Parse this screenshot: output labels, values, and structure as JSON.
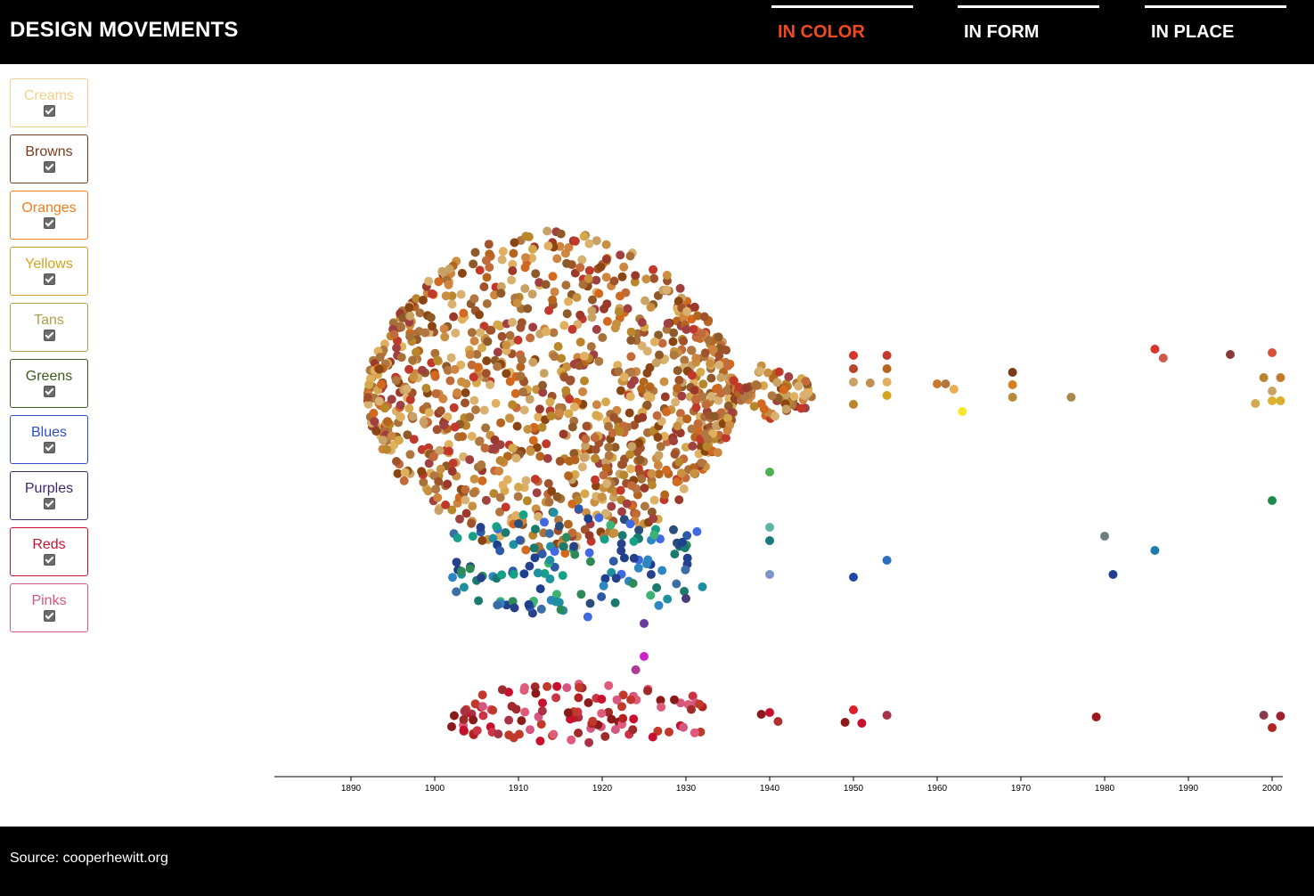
{
  "header": {
    "title": "DESIGN MOVEMENTS",
    "tabs": [
      {
        "label": "IN COLOR",
        "active": true
      },
      {
        "label": "IN FORM",
        "active": false
      },
      {
        "label": "IN PLACE",
        "active": false
      }
    ],
    "active_color": "#f04a24"
  },
  "filters": [
    {
      "label": "Creams",
      "color": "#f0d28c",
      "checked": true
    },
    {
      "label": "Browns",
      "color": "#7a3b1c",
      "checked": true
    },
    {
      "label": "Oranges",
      "color": "#f07e1e",
      "checked": true
    },
    {
      "label": "Yellows",
      "color": "#d4a21e",
      "checked": true
    },
    {
      "label": "Tans",
      "color": "#b59e4b",
      "checked": true
    },
    {
      "label": "Greens",
      "color": "#3d5a1e",
      "checked": true
    },
    {
      "label": "Blues",
      "color": "#2e4ec4",
      "checked": true
    },
    {
      "label": "Purples",
      "color": "#3a2a6e",
      "checked": true
    },
    {
      "label": "Reds",
      "color": "#c8102e",
      "checked": true
    },
    {
      "label": "Pinks",
      "color": "#d4577f",
      "checked": true
    }
  ],
  "footer": {
    "source": "Source: cooperhewitt.org"
  },
  "chart_data": {
    "type": "scatter",
    "title": "",
    "xlabel": "",
    "ylabel": "",
    "x_ticks": [
      1890,
      1900,
      1910,
      1920,
      1930,
      1940,
      1950,
      1960,
      1970,
      1980,
      1990,
      2000
    ],
    "xlim": [
      1881,
      2001
    ],
    "grid": false,
    "series": [
      {
        "group": "warm",
        "colors": [
          "#a0522d",
          "#b5651d",
          "#c8a165",
          "#8b4513",
          "#d2691e",
          "#c0392b",
          "#b8862b",
          "#a9713a",
          "#cd853f",
          "#d4a84b",
          "#9b3a2a",
          "#e0b060",
          "#b07840",
          "#c26a3a",
          "#8f5a2a",
          "#d8b070",
          "#a04040",
          "#c89040"
        ],
        "clusters": [
          {
            "year_min": 1892,
            "year_max": 1938,
            "count": 1150,
            "peak_year": 1915
          },
          {
            "year_min": 1938,
            "year_max": 1945,
            "count": 55
          }
        ],
        "points": [
          {
            "x": 1950,
            "color": "#d9362b"
          },
          {
            "x": 1950,
            "color": "#b8442e"
          },
          {
            "x": 1950,
            "color": "#c8a165"
          },
          {
            "x": 1950,
            "color": "#b8862b"
          },
          {
            "x": 1952,
            "color": "#c09050"
          },
          {
            "x": 1954,
            "color": "#c0392b"
          },
          {
            "x": 1954,
            "color": "#b5651d"
          },
          {
            "x": 1954,
            "color": "#e0b060"
          },
          {
            "x": 1954,
            "color": "#d4a21e"
          },
          {
            "x": 1960,
            "color": "#c8782a"
          },
          {
            "x": 1961,
            "color": "#b07840"
          },
          {
            "x": 1962,
            "color": "#e8b050"
          },
          {
            "x": 1963,
            "color": "#f5e62a"
          },
          {
            "x": 1969,
            "color": "#7a3b1c"
          },
          {
            "x": 1969,
            "color": "#d07f1e"
          },
          {
            "x": 1969,
            "color": "#b58a3b"
          },
          {
            "x": 1976,
            "color": "#a8894b"
          },
          {
            "x": 1986,
            "color": "#d9362b"
          },
          {
            "x": 1987,
            "color": "#d05a4a"
          },
          {
            "x": 1995,
            "color": "#8b3a3a"
          },
          {
            "x": 2000,
            "color": "#d9503b"
          },
          {
            "x": 2001,
            "color": "#c8782a"
          },
          {
            "x": 1999,
            "color": "#b8862b"
          },
          {
            "x": 2000,
            "color": "#c8a165"
          },
          {
            "x": 1998,
            "color": "#d4a84b"
          },
          {
            "x": 2000,
            "color": "#e0b030"
          },
          {
            "x": 2001,
            "color": "#d9ae2a"
          }
        ]
      },
      {
        "group": "greens-blues-purples",
        "colors": [
          "#2e8b57",
          "#3cb371",
          "#1e90a0",
          "#2e5aa8",
          "#1f3f8f",
          "#3a6ea5",
          "#16a085",
          "#2e86c1",
          "#27408b",
          "#4169e1",
          "#2a4d7a",
          "#1a7a6e"
        ],
        "clusters": [
          {
            "year_min": 1902,
            "year_max": 1932,
            "count": 140
          }
        ],
        "points": [
          {
            "x": 1940,
            "color": "#4caf50"
          },
          {
            "x": 1940,
            "color": "#5bb5a5"
          },
          {
            "x": 1940,
            "color": "#1a7a7a"
          },
          {
            "x": 1940,
            "color": "#7a96cc"
          },
          {
            "x": 1950,
            "color": "#2046a8"
          },
          {
            "x": 1954,
            "color": "#2a6ec4"
          },
          {
            "x": 1980,
            "color": "#6e7e80"
          },
          {
            "x": 1986,
            "color": "#1f7ab0"
          },
          {
            "x": 1981,
            "color": "#1f3f8f"
          },
          {
            "x": 2000,
            "color": "#1e8a4a"
          },
          {
            "x": 1930,
            "color": "#4a3a7a"
          },
          {
            "x": 1925,
            "color": "#6a3a9a"
          }
        ]
      },
      {
        "group": "reds-pinks",
        "colors": [
          "#b22222",
          "#c8102e",
          "#a83246",
          "#d4577f",
          "#8b1a1a",
          "#c0392b",
          "#e05a7a",
          "#9e2a2a",
          "#cc3344"
        ],
        "clusters": [
          {
            "year_min": 1902,
            "year_max": 1932,
            "count": 110
          }
        ],
        "points": [
          {
            "x": 1925,
            "color": "#cc22cc"
          },
          {
            "x": 1924,
            "color": "#b03a9a"
          },
          {
            "x": 1939,
            "color": "#8b1a1a"
          },
          {
            "x": 1940,
            "color": "#c8102e"
          },
          {
            "x": 1941,
            "color": "#b03030"
          },
          {
            "x": 1950,
            "color": "#d9202b"
          },
          {
            "x": 1949,
            "color": "#8b1a1a"
          },
          {
            "x": 1951,
            "color": "#c8102e"
          },
          {
            "x": 1954,
            "color": "#a83246"
          },
          {
            "x": 1979,
            "color": "#9e1a1a"
          },
          {
            "x": 1999,
            "color": "#8b3a4a"
          },
          {
            "x": 2001,
            "color": "#a02030"
          },
          {
            "x": 2000,
            "color": "#b22222"
          }
        ]
      }
    ]
  }
}
